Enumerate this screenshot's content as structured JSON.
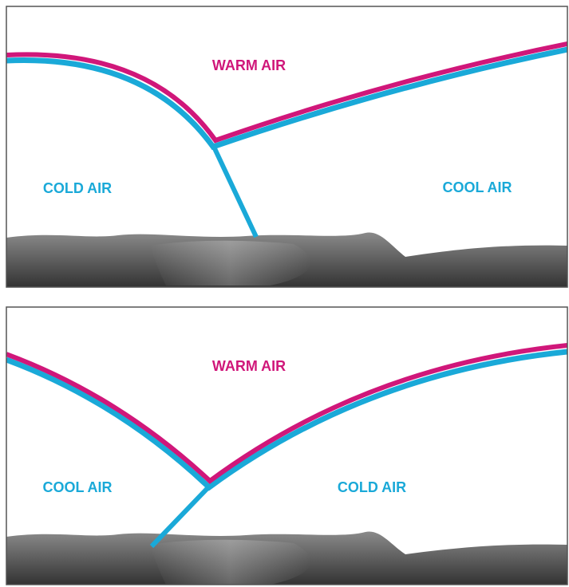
{
  "panels": [
    {
      "labels": [
        "WARM AIR",
        "COLD AIR",
        "COOL AIR"
      ]
    },
    {
      "labels": [
        "WARM AIR",
        "COOL AIR",
        "COLD AIR"
      ]
    }
  ]
}
